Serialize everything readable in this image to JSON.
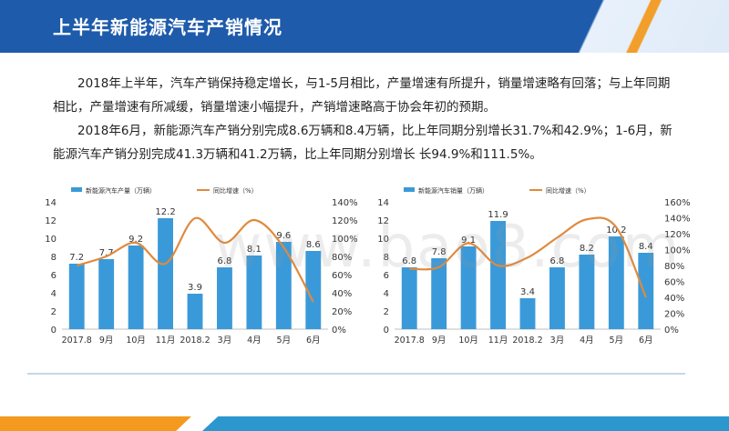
{
  "header": {
    "title": "上半年新能源汽车产销情况"
  },
  "body": {
    "paragraph1": "2018年上半年，汽车产销保持稳定增长，与1-5月相比，产量增速有所提升，销量增速略有回落；与上年同期相比，产量增速有所减缓，销量增速小幅提升，产销增速略高于协会年初的预期。",
    "paragraph2": "2018年6月，新能源汽车产销分别完成8.6万辆和8.4万辆，比上年同期分别增长31.7%和42.9%；1-6月，新能源汽车产销分别完成41.3万辆和41.2万辆，比上年同期分别增长 长94.9%和111.5%。"
  },
  "watermark": "www.bao8.com",
  "colors": {
    "header": "#1e5bab",
    "bar": "#3a9ad9",
    "line": "#e08a3c",
    "accent_orange": "#f39a1f",
    "accent_blue": "#2c97cf"
  },
  "chart_data": [
    {
      "type": "bar",
      "categories": [
        "2017.8",
        "9月",
        "10月",
        "11月",
        "2018.2",
        "3月",
        "4月",
        "5月",
        "6月"
      ],
      "series": [
        {
          "name": "新能源汽车产量（万辆）",
          "type": "bar",
          "axis": "left",
          "values": [
            7.2,
            7.7,
            9.2,
            12.2,
            3.9,
            6.8,
            8.1,
            9.6,
            8.6
          ]
        },
        {
          "name": "同比增速（%）",
          "type": "line",
          "axis": "right",
          "values": [
            70,
            80,
            95,
            72,
            122,
            95,
            120,
            90,
            30
          ]
        }
      ],
      "ylim_left": [
        0,
        14
      ],
      "yticks_left": [
        "0",
        "2",
        "4",
        "6",
        "8",
        "10",
        "12",
        "14"
      ],
      "ylim_right": [
        0,
        140
      ],
      "yticks_right": [
        "0%",
        "20%",
        "40%",
        "60%",
        "80%",
        "100%",
        "120%",
        "140%"
      ],
      "legend": "top"
    },
    {
      "type": "bar",
      "categories": [
        "2017.8",
        "9月",
        "10月",
        "11月",
        "2018.2",
        "3月",
        "4月",
        "5月",
        "6月"
      ],
      "series": [
        {
          "name": "新能源汽车销量（万辆）",
          "type": "bar",
          "axis": "left",
          "values": [
            6.8,
            7.8,
            9.1,
            11.9,
            3.4,
            6.8,
            8.2,
            10.2,
            8.4
          ]
        },
        {
          "name": "同比增速（%）",
          "type": "line",
          "axis": "right",
          "values": [
            76,
            78,
            108,
            80,
            90,
            115,
            138,
            128,
            40
          ]
        }
      ],
      "ylim_left": [
        0,
        14
      ],
      "yticks_left": [
        "0",
        "2",
        "4",
        "6",
        "8",
        "10",
        "12",
        "14"
      ],
      "ylim_right": [
        0,
        160
      ],
      "yticks_right": [
        "0%",
        "20%",
        "40%",
        "60%",
        "80%",
        "100%",
        "120%",
        "140%",
        "160%"
      ],
      "legend": "top"
    }
  ]
}
